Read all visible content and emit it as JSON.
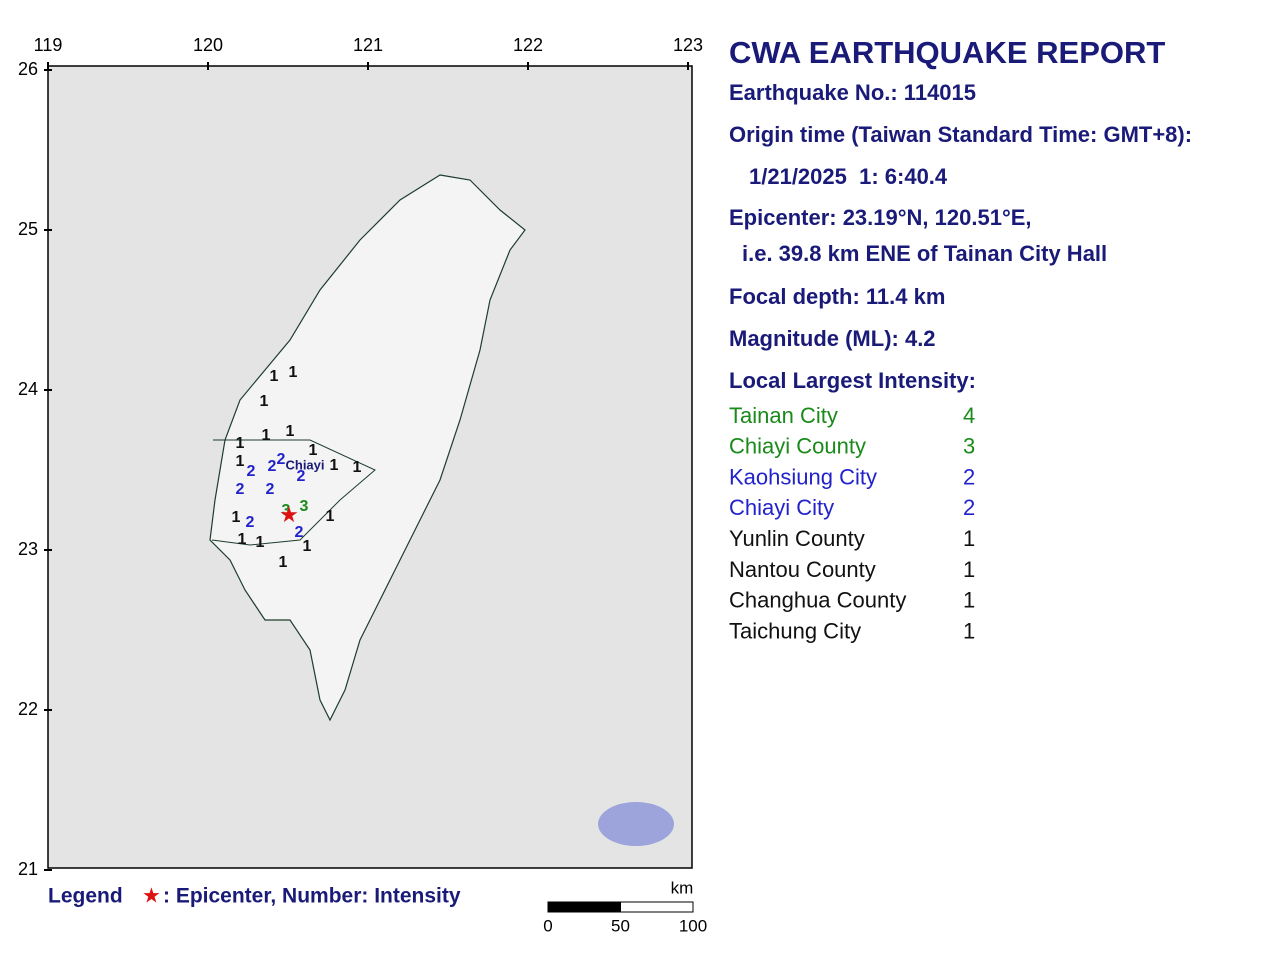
{
  "map": {
    "lon_ticks": [
      119,
      120,
      121,
      122,
      123
    ],
    "lat_ticks": [
      26,
      25,
      24,
      23,
      22,
      21
    ],
    "station_intensities": [
      1,
      1,
      1,
      1,
      1,
      1,
      1,
      1,
      1,
      1,
      2,
      2,
      2,
      2,
      2,
      2,
      3,
      3,
      1,
      2,
      1,
      2,
      1,
      1,
      1,
      1
    ],
    "city_label": "Chiayi",
    "legend": {
      "title": "Legend",
      "symbol": "★",
      "text": ": Epicenter, Number: Intensity"
    },
    "scale": {
      "unit": "km",
      "ticks": [
        0,
        50,
        100
      ]
    }
  },
  "report": {
    "title": "CWA EARTHQUAKE REPORT",
    "lines": [
      "Earthquake No.: 114015",
      "Origin time (Taiwan Standard Time: GMT+8):",
      "1/21/2025  1: 6:40.4",
      "Epicenter: 23.19°N, 120.51°E,",
      "i.e. 39.8 km ENE of Tainan City Hall",
      "Focal depth: 11.4 km",
      "Magnitude (ML): 4.2",
      "Local Largest Intensity:"
    ],
    "intensity_rows": [
      {
        "name": "Tainan City",
        "value": 4,
        "color": "#1a8a1a"
      },
      {
        "name": "Chiayi County",
        "value": 3,
        "color": "#1a8a1a"
      },
      {
        "name": "Kaohsiung City",
        "value": 2,
        "color": "#2222cc"
      },
      {
        "name": "Chiayi City",
        "value": 2,
        "color": "#2222cc"
      },
      {
        "name": "Yunlin County",
        "value": 1,
        "color": "#111111"
      },
      {
        "name": "Nantou County",
        "value": 1,
        "color": "#111111"
      },
      {
        "name": "Changhua County",
        "value": 1,
        "color": "#111111"
      },
      {
        "name": "Taichung City",
        "value": 1,
        "color": "#111111"
      }
    ]
  }
}
